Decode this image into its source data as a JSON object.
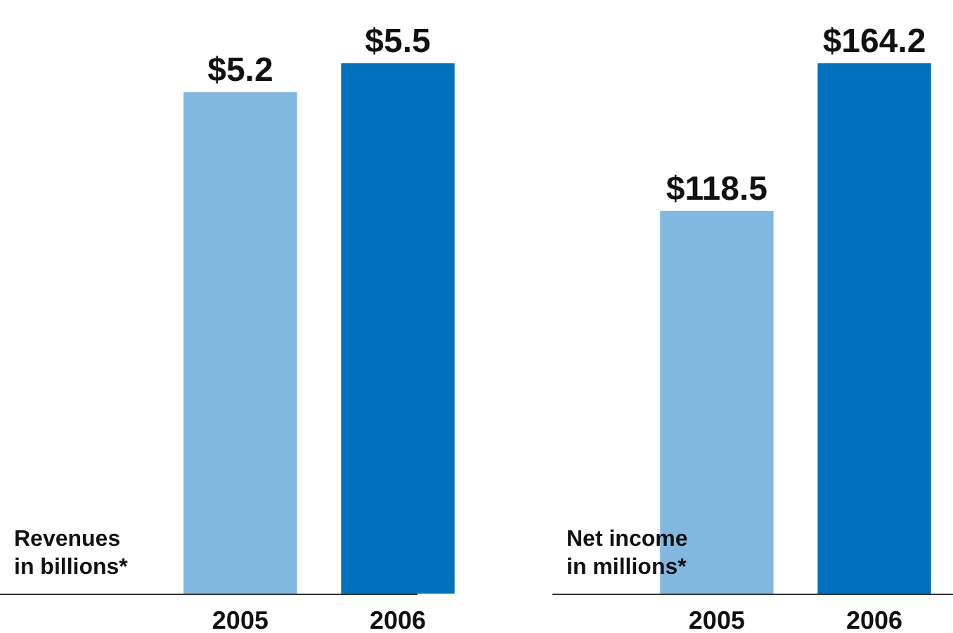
{
  "chart_data": [
    {
      "type": "bar",
      "ylabel": "Revenues\nin billions*",
      "categories": [
        "2005",
        "2006"
      ],
      "values": [
        5.2,
        5.5
      ],
      "colors": [
        "#80b8e0",
        "#0071bc"
      ],
      "value_labels": [
        "$5.2",
        "$5.5"
      ]
    },
    {
      "type": "bar",
      "ylabel": "Net income\nin millions*",
      "categories": [
        "2005",
        "2006"
      ],
      "values": [
        118.5,
        164.2
      ],
      "colors": [
        "#80b8e0",
        "#0071bc"
      ],
      "value_labels": [
        "$118.5",
        "$164.2"
      ]
    }
  ]
}
